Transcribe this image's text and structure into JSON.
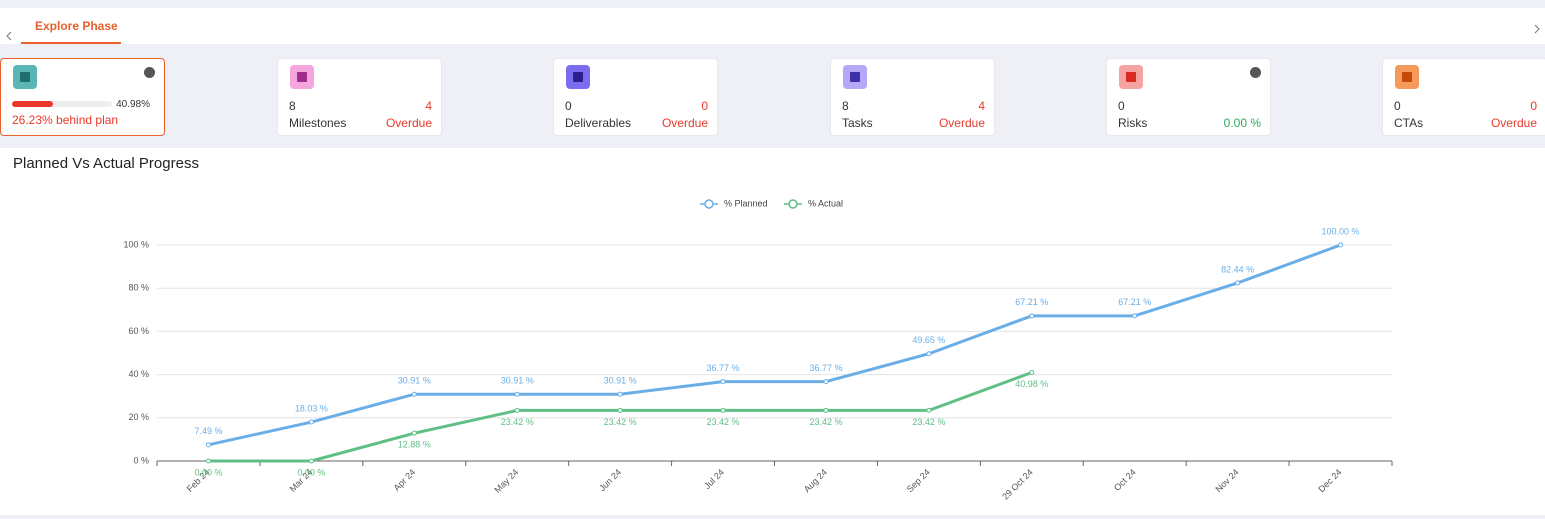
{
  "tabs": [
    "Explore Phase"
  ],
  "cards": [
    {
      "progress": {
        "value": 40.98,
        "label": "40.98%"
      },
      "status": "26.23% behind plan"
    },
    {
      "count": 8,
      "label": "Milestones",
      "overdue": 4,
      "overdue_label": "Overdue"
    },
    {
      "count": 0,
      "label": "Deliverables",
      "overdue": 0,
      "overdue_label": "Overdue"
    },
    {
      "count": 8,
      "label": "Tasks",
      "overdue": 4,
      "overdue_label": "Overdue"
    },
    {
      "count": 0,
      "label": "Risks",
      "overdue": "0.00 %"
    },
    {
      "count": 0,
      "label": "CTAs",
      "overdue": 0,
      "overdue_label": "Overdue"
    }
  ],
  "chart_data": {
    "type": "line",
    "title": "Planned Vs Actual Progress",
    "categories": [
      "Feb 24",
      "Mar 24",
      "Apr 24",
      "May 24",
      "Jun 24",
      "Jul 24",
      "Aug 24",
      "Sep 24",
      "29 Oct 24",
      "Oct 24",
      "Nov 24",
      "Dec 24"
    ],
    "series": [
      {
        "name": "% Planned",
        "color": "#6aaee8",
        "values": [
          7.49,
          18.03,
          30.91,
          30.91,
          30.91,
          36.77,
          36.77,
          49.65,
          67.21,
          67.21,
          82.44,
          100.0
        ],
        "value_labels": [
          "7.49 %",
          "18.03 %",
          "30.91 %",
          "30.91 %",
          "30.91 %",
          "36.77 %",
          "36.77 %",
          "49.65 %",
          "67.21 %",
          "67.21 %",
          "82.44 %",
          "100.00 %"
        ]
      },
      {
        "name": "% Actual",
        "color": "#5fbf85",
        "values": [
          0.0,
          0.0,
          12.88,
          23.42,
          23.42,
          23.42,
          23.42,
          23.42,
          40.98,
          null,
          null,
          null
        ],
        "value_labels": [
          "0.00 %",
          "0.00 %",
          "12.88 %",
          "23.42 %",
          "23.42 %",
          "23.42 %",
          "23.42 %",
          "23.42 %",
          "40.98 %",
          null,
          null,
          null
        ]
      }
    ],
    "ylim": [
      0,
      100
    ],
    "yticks": [
      {
        "value": 0,
        "label": "0 %"
      },
      {
        "value": 20,
        "label": "20 %"
      },
      {
        "value": 40,
        "label": "40 %"
      },
      {
        "value": 60,
        "label": "60 %"
      },
      {
        "value": 80,
        "label": "80 %"
      },
      {
        "value": 100,
        "label": "100 %"
      }
    ],
    "grid": true,
    "legend": "top"
  }
}
